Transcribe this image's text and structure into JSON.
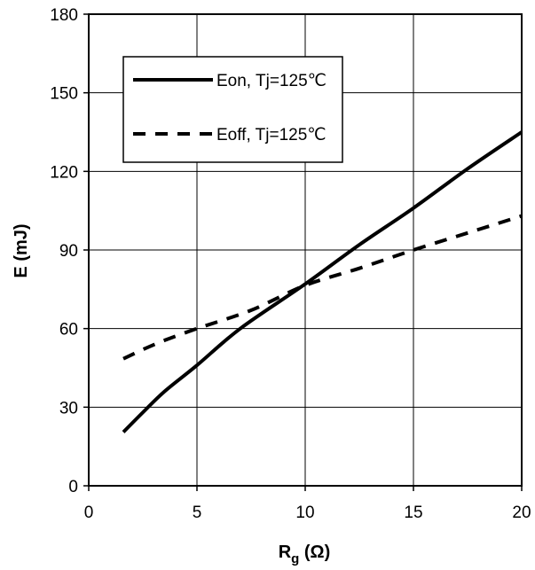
{
  "chart_data": {
    "type": "line",
    "title": "",
    "xlabel": "R",
    "xlabel_sub": "g",
    "xlabel_unit": " (Ω)",
    "ylabel": "E (mJ)",
    "xlim": [
      0,
      20
    ],
    "ylim": [
      0,
      180
    ],
    "xticks": [
      0,
      5,
      10,
      15,
      20
    ],
    "yticks": [
      0,
      30,
      60,
      90,
      120,
      150,
      180
    ],
    "grid": true,
    "legend_position": "top-left",
    "series": [
      {
        "name": "Eon, Tj=125℃",
        "style": "solid",
        "color": "#000000",
        "x": [
          1.6,
          2.5,
          3.5,
          5,
          7,
          10,
          12.5,
          15,
          17.5,
          20
        ],
        "y": [
          20.5,
          28,
          36,
          46,
          60,
          77,
          92,
          106,
          121,
          135
        ]
      },
      {
        "name": "Eoff, Tj=125℃",
        "style": "dashed",
        "color": "#000000",
        "x": [
          1.6,
          2.5,
          3.5,
          5,
          7.5,
          10,
          12.5,
          15,
          17.5,
          20
        ],
        "y": [
          48.5,
          52,
          55.5,
          60,
          67,
          76.5,
          83,
          90,
          96.5,
          103
        ]
      }
    ]
  }
}
